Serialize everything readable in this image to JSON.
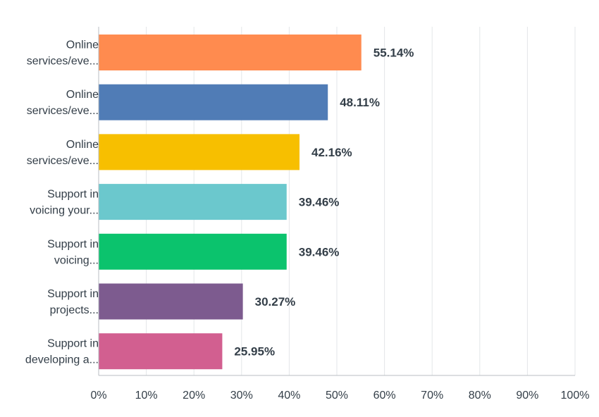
{
  "chart_data": {
    "type": "bar",
    "orientation": "horizontal",
    "title": "",
    "categories": [
      [
        "Online",
        "services/eve..."
      ],
      [
        "Online",
        "services/eve..."
      ],
      [
        "Online",
        "services/eve..."
      ],
      [
        "Support in",
        "voicing your..."
      ],
      [
        "Support in",
        "voicing..."
      ],
      [
        "Support in",
        "projects..."
      ],
      [
        "Support in",
        "developing a..."
      ]
    ],
    "values": [
      55.14,
      48.11,
      42.16,
      39.46,
      39.46,
      30.27,
      25.95
    ],
    "value_labels": [
      "55.14%",
      "48.11%",
      "42.16%",
      "39.46%",
      "39.46%",
      "30.27%",
      "25.95%"
    ],
    "colors": [
      "#ff8b4f",
      "#507cb6",
      "#f7bf00",
      "#6bc8cd",
      "#0bc36d",
      "#7d5b8f",
      "#d25f90"
    ],
    "xlim": [
      0,
      100
    ],
    "x_ticks": [
      "0%",
      "10%",
      "20%",
      "30%",
      "40%",
      "50%",
      "60%",
      "70%",
      "80%",
      "90%",
      "100%"
    ],
    "xlabel": "",
    "ylabel": "",
    "grid": true,
    "legend": "none"
  }
}
